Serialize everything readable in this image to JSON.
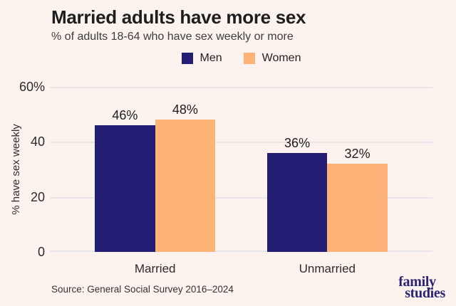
{
  "colors": {
    "background": "#fdf3ee",
    "men_navy": "#231d73",
    "women_orange": "#fdb377",
    "gridline": "#e7e4ea",
    "logo_navy": "#2b2473"
  },
  "header": {
    "title": "Married adults have more sex",
    "subtitle": "% of adults 18-64 who have sex weekly or more"
  },
  "chart_data": {
    "type": "bar",
    "title": "Married adults have more sex",
    "subtitle": "% of adults 18-64 who have sex weekly or more",
    "categories": [
      "Married",
      "Unmarried"
    ],
    "series": [
      {
        "name": "Men",
        "color": "#231d73",
        "values": [
          46,
          36
        ],
        "labels": [
          "46%",
          "36%"
        ]
      },
      {
        "name": "Women",
        "color": "#fdb377",
        "values": [
          48,
          32
        ],
        "labels": [
          "48%",
          "32%"
        ]
      }
    ],
    "xlabel": "",
    "ylabel": "% have sex weekly",
    "ylim": [
      0,
      60
    ],
    "yticks": [
      {
        "value": 60,
        "label": "60%"
      },
      {
        "value": 40,
        "label": "40"
      },
      {
        "value": 20,
        "label": "20"
      },
      {
        "value": 0,
        "label": "0"
      }
    ],
    "grid": true,
    "legend_position": "top-center"
  },
  "footer": {
    "source": "Source: General Social Survey 2016–2024",
    "logo_line1": "family",
    "logo_line2": "studies"
  }
}
